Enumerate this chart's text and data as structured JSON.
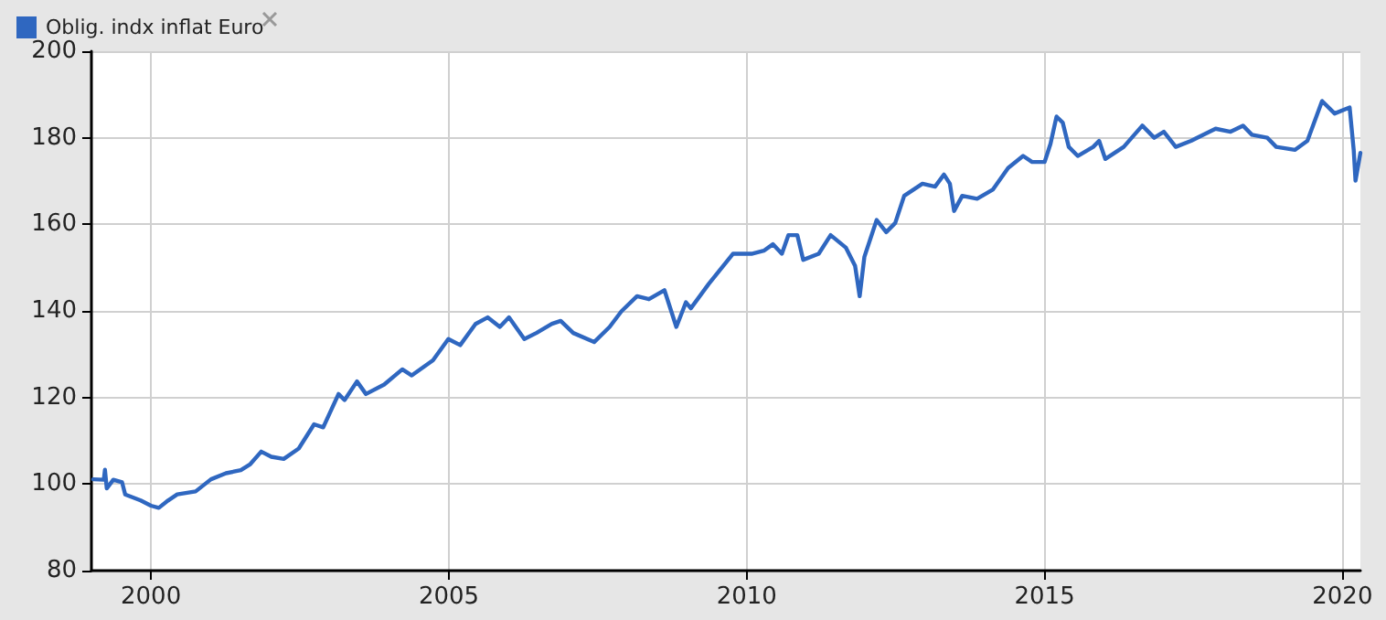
{
  "chart_data": {
    "type": "line",
    "x": [
      "1999-01-12",
      "1999-03-18",
      "1999-03-25",
      "1999-04-05",
      "1999-05-15",
      "1999-07-08",
      "1999-07-27",
      "1999-10-30",
      "2000-01-01",
      "2000-02-18",
      "2000-04-15",
      "2000-06-10",
      "2000-10-01",
      "2001-01-03",
      "2001-04-05",
      "2001-07-05",
      "2001-09-01",
      "2001-11-07",
      "2002-01-08",
      "2002-03-25",
      "2002-06-25",
      "2002-09-27",
      "2002-11-22",
      "2003-02-24",
      "2003-04-02",
      "2003-06-17",
      "2003-08-11",
      "2003-12-01",
      "2004-03-21",
      "2004-05-18",
      "2004-09-25",
      "2004-12-28",
      "2005-03-11",
      "2005-06-13",
      "2005-08-26",
      "2005-11-09",
      "2006-01-04",
      "2006-04-08",
      "2006-06-21",
      "2006-09-24",
      "2006-11-17",
      "2007-02-02",
      "2007-06-10",
      "2007-09-13",
      "2007-11-24",
      "2008-02-28",
      "2008-05-11",
      "2008-08-14",
      "2008-10-26",
      "2008-12-24",
      "2009-01-23",
      "2009-05-12",
      "2009-10-08",
      "2010-01-30",
      "2010-04-15",
      "2010-06-10",
      "2010-08-04",
      "2010-09-13",
      "2010-11-07",
      "2010-12-13",
      "2011-03-18",
      "2011-05-30",
      "2011-09-01",
      "2011-10-27",
      "2011-11-24",
      "2011-12-23",
      "2012-03-07",
      "2012-05-05",
      "2012-06-29",
      "2012-08-23",
      "2012-12-13",
      "2013-02-28",
      "2013-04-24",
      "2013-05-30",
      "2013-06-25",
      "2013-08-14",
      "2013-11-13",
      "2014-02-17",
      "2014-05-22",
      "2014-08-22",
      "2014-10-16",
      "2015-01-01",
      "2015-02-06",
      "2015-03-15",
      "2015-04-22",
      "2015-05-29",
      "2015-07-23",
      "2015-10-26",
      "2015-12-01",
      "2016-01-08",
      "2016-04-30",
      "2016-08-22",
      "2016-11-03",
      "2017-01-01",
      "2017-03-15",
      "2017-06-17",
      "2017-11-14",
      "2018-02-14",
      "2018-05-01",
      "2018-06-25",
      "2018-09-27",
      "2018-11-21",
      "2019-03-15",
      "2019-05-31",
      "2019-08-29",
      "2019-11-14",
      "2020-02-14",
      "2020-03-10",
      "2020-03-21",
      "2020-04-20"
    ],
    "series": [
      {
        "name": "Oblig. indx inflat Euro",
        "color": "#2f67c0",
        "values": [
          101.1,
          101,
          103.3,
          99,
          101,
          100.4,
          97.6,
          96.2,
          95,
          94.5,
          96.2,
          97.6,
          98.3,
          101.1,
          102.5,
          103.2,
          104.6,
          107.5,
          106.3,
          105.8,
          108.2,
          113.8,
          113.1,
          120.8,
          119.4,
          123.7,
          120.8,
          123,
          126.5,
          125.1,
          128.6,
          133.5,
          132.1,
          137,
          138.5,
          136.3,
          138.5,
          133.5,
          134.9,
          137,
          137.7,
          134.9,
          132.8,
          136.3,
          139.9,
          143.4,
          142.7,
          144.8,
          136.3,
          142,
          140.6,
          146.2,
          153.2,
          153.2,
          153.9,
          155.4,
          153.2,
          157.5,
          157.5,
          151.8,
          153.2,
          157.5,
          154.6,
          150.4,
          143.4,
          152.5,
          161,
          158.2,
          160.3,
          166.6,
          169.4,
          168.7,
          171.5,
          169.4,
          163.1,
          166.6,
          165.9,
          168,
          173,
          175.8,
          174.4,
          174.4,
          178.6,
          184.9,
          183.5,
          177.9,
          175.8,
          177.9,
          179.3,
          175.1,
          177.9,
          182.8,
          180,
          181.4,
          177.9,
          179.3,
          182.1,
          181.4,
          182.8,
          180.7,
          180,
          177.9,
          177.2,
          179.3,
          188.5,
          185.6,
          187,
          177.2,
          170.1,
          176.5
        ]
      }
    ],
    "xlim": [
      "1999-01-01",
      "2020-04-20"
    ],
    "xticks": [
      "2000",
      "2005",
      "2010",
      "2015",
      "2020"
    ],
    "ylim": [
      80,
      200
    ],
    "yticks": [
      80,
      100,
      120,
      140,
      160,
      180,
      200
    ],
    "grid": true,
    "legend": "top left",
    "marker": "none",
    "line_style": "solid"
  }
}
